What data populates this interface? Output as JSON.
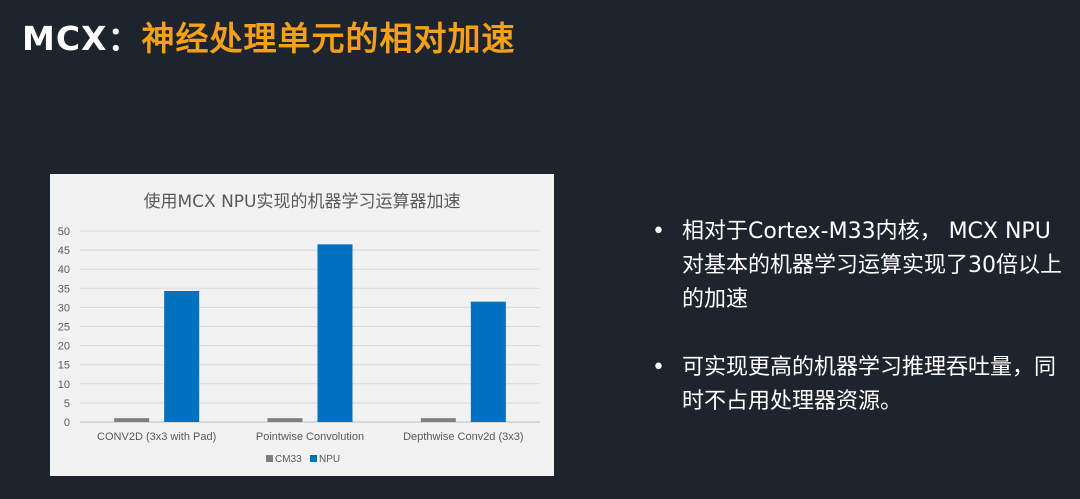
{
  "header": {
    "prefix": "MCX",
    "colon": "：",
    "title": "神经处理单元的相对加速"
  },
  "chart_data": {
    "type": "bar",
    "title": "使用MCX NPU实现的机器学习运算器加速",
    "categories": [
      "CONV2D (3x3 with Pad)",
      "Pointwise Convolution",
      "Depthwise Conv2d (3x3)"
    ],
    "series": [
      {
        "name": "CM33",
        "values": [
          1,
          1,
          1
        ],
        "color": "#7f7f7f"
      },
      {
        "name": "NPU",
        "values": [
          34.3,
          46.5,
          31.5
        ],
        "color": "#0070c0"
      }
    ],
    "ylim": [
      0,
      50
    ],
    "yticks": [
      "0",
      "5",
      "10",
      "15",
      "20",
      "25",
      "30",
      "35",
      "40",
      "45",
      "50"
    ],
    "grid": true,
    "legend": "bottom"
  },
  "bullets": [
    {
      "text": "相对于Cortex-M33内核， MCX NPU对基本的机器学习运算实现了30倍以上的加速"
    },
    {
      "text": "可实现更高的机器学习推理吞吐量，同时不占用处理器资源。"
    }
  ],
  "bullet_symbol": "•"
}
